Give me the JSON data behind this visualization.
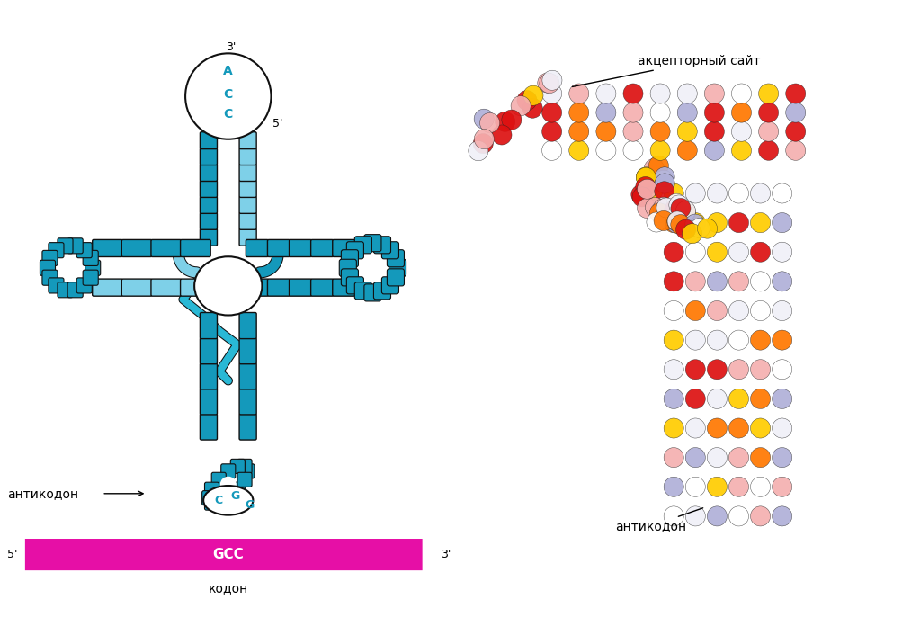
{
  "background_color": "#ffffff",
  "left_panel": {
    "title": "",
    "tRNA_color_dark": "#1a9fbf",
    "tRNA_color_light": "#7fd4e8",
    "tRNA_color_mid": "#3ab8d8",
    "outline_color": "#000000",
    "acc_stem_label": "ACC",
    "acc_top_label": "A",
    "acc_label_3prime": "3'",
    "acc_label_5prime": "5'",
    "anticodon_label": "CGG",
    "anticodon_text": "антикодон",
    "codon_label": "GCC",
    "codon_text": "кодон",
    "codon_5prime": "5'",
    "codon_3prime": "3'",
    "codon_color": "#e60fa6"
  },
  "right_panel": {
    "label_acceptor": "акцепторный сайт",
    "label_anticodon": "антикодон",
    "colors": {
      "red": "#dd1111",
      "yellow": "#ffcc00",
      "pink": "#f0a0a0",
      "white": "#f8f8f8",
      "lavender": "#b0b0d8",
      "orange": "#ff7700"
    }
  }
}
